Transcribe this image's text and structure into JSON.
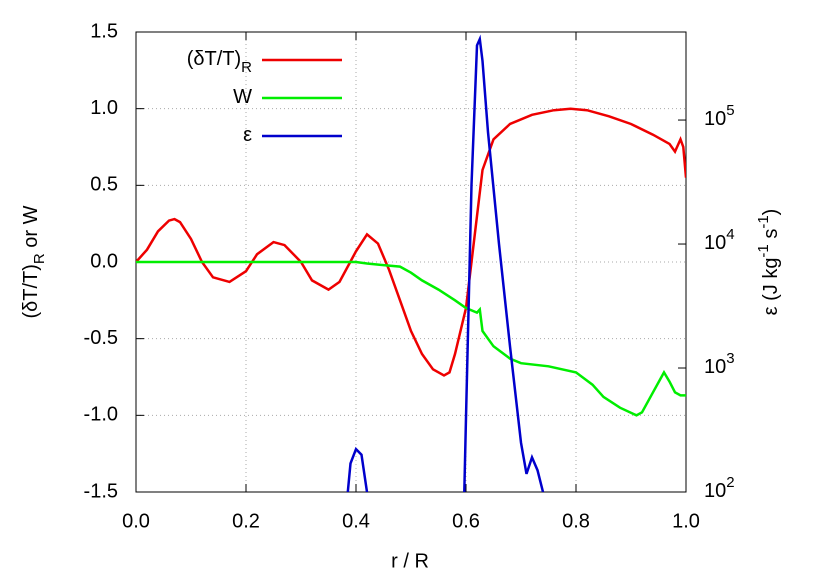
{
  "chart_data": {
    "type": "line",
    "xlabel": "r / R",
    "ylabel": {
      "text": "(δT/T)",
      "sub": "R",
      "rest": "  or  W"
    },
    "y2label": {
      "a": "ε (J kg",
      "b": "-1",
      "c": " s",
      "d": "-1",
      "e": ")"
    },
    "xlim": [
      0.0,
      1.0
    ],
    "xticks": [
      {
        "value": 0,
        "label": "0.0"
      },
      0.2,
      0.4,
      0.6,
      0.8,
      {
        "value": 1,
        "label": "1.0"
      }
    ],
    "ylim": [
      -1.5,
      1.5
    ],
    "yticks": [
      -1.5,
      {
        "value": -1,
        "label": "-1.0"
      },
      -0.5,
      {
        "value": 0,
        "label": "0.0"
      },
      0.5,
      {
        "value": 1,
        "label": "1.0"
      },
      1.5
    ],
    "y2lim": [
      100,
      513000
    ],
    "y2scale": "log",
    "y2ticks": [
      {
        "value": 100,
        "label": "10",
        "exponent": "2"
      },
      {
        "value": 1000,
        "label": "10",
        "exponent": "3"
      },
      {
        "value": 10000,
        "label": "10",
        "exponent": "4"
      },
      {
        "value": 100000,
        "label": "10",
        "exponent": "5"
      }
    ],
    "grid": true,
    "legend": "upper left",
    "series": [
      {
        "name": "(δT/T)",
        "name_sub": "R",
        "color": "#ee0000",
        "x": [
          0,
          0.02,
          0.04,
          0.06,
          0.07,
          0.08,
          0.1,
          0.12,
          0.14,
          0.17,
          0.2,
          0.22,
          0.25,
          0.27,
          0.3,
          0.32,
          0.35,
          0.37,
          0.4,
          0.42,
          0.44,
          0.46,
          0.48,
          0.5,
          0.52,
          0.54,
          0.56,
          0.57,
          0.58,
          0.6,
          0.62,
          0.63,
          0.65,
          0.68,
          0.72,
          0.76,
          0.79,
          0.82,
          0.86,
          0.9,
          0.94,
          0.97,
          0.98,
          0.99,
          0.995,
          1.0
        ],
        "values": [
          0,
          0.08,
          0.2,
          0.27,
          0.28,
          0.26,
          0.15,
          0.0,
          -0.1,
          -0.13,
          -0.06,
          0.05,
          0.13,
          0.11,
          0.0,
          -0.12,
          -0.18,
          -0.13,
          0.07,
          0.18,
          0.12,
          -0.05,
          -0.25,
          -0.45,
          -0.6,
          -0.7,
          -0.74,
          -0.72,
          -0.6,
          -0.3,
          0.3,
          0.6,
          0.8,
          0.9,
          0.96,
          0.99,
          1.0,
          0.99,
          0.95,
          0.9,
          0.83,
          0.77,
          0.72,
          0.8,
          0.75,
          0.55
        ]
      },
      {
        "name": "W",
        "color": "#00ee00",
        "x": [
          0,
          0.1,
          0.2,
          0.3,
          0.4,
          0.42,
          0.45,
          0.48,
          0.5,
          0.52,
          0.55,
          0.58,
          0.6,
          0.62,
          0.625,
          0.63,
          0.65,
          0.68,
          0.7,
          0.75,
          0.8,
          0.83,
          0.85,
          0.88,
          0.91,
          0.92,
          0.94,
          0.96,
          0.97,
          0.98,
          0.99,
          1.0
        ],
        "values": [
          0,
          0,
          0,
          0,
          0,
          -0.01,
          -0.02,
          -0.03,
          -0.07,
          -0.12,
          -0.18,
          -0.25,
          -0.3,
          -0.33,
          -0.31,
          -0.45,
          -0.55,
          -0.63,
          -0.66,
          -0.68,
          -0.72,
          -0.8,
          -0.88,
          -0.95,
          -1.0,
          -0.98,
          -0.85,
          -0.72,
          -0.78,
          -0.85,
          -0.87,
          -0.87
        ]
      },
      {
        "name": "ε",
        "color": "#0000cc",
        "axis": "y2",
        "x": [
          0.385,
          0.39,
          0.4,
          0.41,
          0.42,
          0.5,
          0.597,
          0.6,
          0.61,
          0.62,
          0.625,
          0.63,
          0.64,
          0.66,
          0.68,
          0.7,
          0.71,
          0.72,
          0.73,
          0.74
        ],
        "values": [
          100,
          170,
          222,
          200,
          100,
          null,
          100,
          400,
          30000,
          400000,
          450000,
          300000,
          80000,
          10000,
          1500,
          250,
          140,
          190,
          150,
          100
        ]
      }
    ]
  }
}
